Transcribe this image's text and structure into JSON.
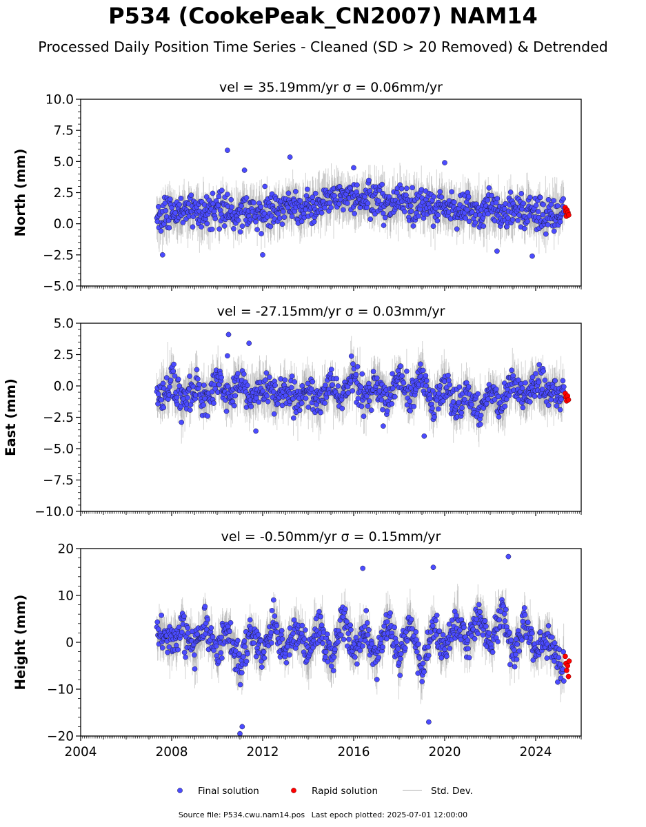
{
  "header": {
    "title": "P534 (CookePeak_CN2007) NAM14",
    "subtitle": "Processed Daily Position Time Series - Cleaned (SD > 20 Removed) & Detrended"
  },
  "footer": {
    "source": "Source file: P534.cwu.nam14.pos",
    "last_epoch": "Last epoch plotted: 2025-07-01 12:00:00"
  },
  "legend": {
    "placement": "bottom-center",
    "final_label": "Final solution",
    "rapid_label": "Rapid solution",
    "sd_label": "Std. Dev."
  },
  "colors": {
    "final": "#4b4bff",
    "rapid": "#ff0000",
    "stddev": "#808080",
    "axis": "#000000"
  },
  "chart_data": [
    {
      "type": "scatter",
      "title": "vel = 35.19mm/yr   σ = 0.06mm/yr",
      "vel": "35.19mm/yr",
      "sigma": "0.06mm/yr",
      "ylabel": "North (mm)",
      "xlim": [
        2004,
        2026
      ],
      "ylim": [
        -5,
        10
      ],
      "yticks": [
        "10.0",
        "7.5",
        "5.0",
        "2.5",
        "0.0",
        "−2.5",
        "−5.0"
      ],
      "ytick_values": [
        10,
        7.5,
        5,
        2.5,
        0,
        -2.5,
        -5
      ],
      "series": [
        {
          "name": "Final solution",
          "x": [
            2007.5,
            2008.0,
            2008.5,
            2009.0,
            2009.5,
            2010.0,
            2010.5,
            2011.0,
            2011.5,
            2012.0,
            2012.5,
            2013.0,
            2013.5,
            2014.0,
            2014.5,
            2015.0,
            2015.5,
            2016.0,
            2016.5,
            2017.0,
            2017.5,
            2018.0,
            2018.5,
            2019.0,
            2019.5,
            2020.0,
            2020.5,
            2021.0,
            2021.5,
            2022.0,
            2022.5,
            2023.0,
            2023.5,
            2024.0,
            2024.5,
            2025.0
          ],
          "y": [
            0.6,
            0.9,
            0.8,
            1.0,
            0.7,
            1.1,
            0.8,
            1.0,
            0.9,
            1.2,
            1.0,
            1.3,
            1.4,
            1.2,
            1.5,
            2.3,
            2.0,
            1.9,
            1.8,
            1.9,
            1.5,
            1.8,
            1.4,
            1.7,
            1.2,
            1.6,
            1.0,
            1.3,
            0.9,
            1.1,
            0.8,
            1.2,
            0.9,
            0.8,
            0.7,
            1.1
          ]
        },
        {
          "name": "Rapid solution",
          "x": [
            2025.3,
            2025.32,
            2025.35,
            2025.38,
            2025.42,
            2025.45
          ],
          "y": [
            1.3,
            1.0,
            0.6,
            1.1,
            0.9,
            0.7
          ]
        }
      ],
      "outliers": {
        "x": [
          2010.45,
          2013.2,
          2011.2,
          2016.0,
          2023.85,
          2007.6,
          2012.0,
          2020.0,
          2022.3
        ],
        "y": [
          5.9,
          5.35,
          4.3,
          4.5,
          -2.6,
          -2.5,
          -2.5,
          4.9,
          -2.2
        ]
      }
    },
    {
      "type": "scatter",
      "title": "vel = -27.15mm/yr   σ = 0.03mm/yr",
      "vel": "-27.15mm/yr",
      "sigma": "0.03mm/yr",
      "ylabel": "East (mm)",
      "xlim": [
        2004,
        2026
      ],
      "ylim": [
        -10,
        5
      ],
      "yticks": [
        "5.0",
        "2.5",
        "0.0",
        "−2.5",
        "−5.0",
        "−7.5",
        "−10.0"
      ],
      "ytick_values": [
        5,
        2.5,
        0,
        -2.5,
        -5,
        -7.5,
        -10
      ],
      "series": [
        {
          "name": "Final solution",
          "x": [
            2007.5,
            2008.0,
            2008.5,
            2009.0,
            2009.5,
            2010.0,
            2010.5,
            2011.0,
            2011.5,
            2012.0,
            2012.5,
            2013.0,
            2013.5,
            2014.0,
            2014.5,
            2015.0,
            2015.5,
            2016.0,
            2016.5,
            2017.0,
            2017.5,
            2018.0,
            2018.5,
            2019.0,
            2019.5,
            2020.0,
            2020.5,
            2021.0,
            2021.5,
            2022.0,
            2022.5,
            2023.0,
            2023.5,
            2024.0,
            2024.5,
            2025.0
          ],
          "y": [
            -0.8,
            0.5,
            -1.3,
            0.2,
            -1.2,
            0.3,
            -1.1,
            0.2,
            -1.0,
            -0.2,
            -1.0,
            -0.4,
            -1.2,
            -0.3,
            -1.3,
            0.2,
            -1.2,
            1.2,
            -1.4,
            0.6,
            -1.5,
            0.8,
            -1.0,
            1.0,
            -1.6,
            0.0,
            -1.8,
            -0.3,
            -2.2,
            -0.5,
            -1.5,
            0.3,
            -1.0,
            0.5,
            -0.9,
            -0.6
          ]
        },
        {
          "name": "Rapid solution",
          "x": [
            2025.3,
            2025.33,
            2025.36,
            2025.4,
            2025.44
          ],
          "y": [
            -0.6,
            -0.9,
            -1.2,
            -0.8,
            -1.1
          ]
        }
      ],
      "outliers": {
        "x": [
          2010.5,
          2011.4,
          2010.45,
          2011.7,
          2019.1,
          2017.3
        ],
        "y": [
          4.1,
          3.4,
          2.4,
          -3.6,
          -4.0,
          -3.2
        ]
      }
    },
    {
      "type": "scatter",
      "title": "vel = -0.50mm/yr   σ = 0.15mm/yr",
      "vel": "-0.50mm/yr",
      "sigma": "0.15mm/yr",
      "ylabel": "Height (mm)",
      "xlim": [
        2004,
        2026
      ],
      "ylim": [
        -20,
        20
      ],
      "yticks": [
        "20",
        "10",
        "0",
        "−10",
        "−20"
      ],
      "ytick_values": [
        20,
        10,
        0,
        -10,
        -20
      ],
      "xticks": [
        "2004",
        "2008",
        "2012",
        "2016",
        "2020",
        "2024"
      ],
      "xtick_values": [
        2004,
        2008,
        2012,
        2016,
        2020,
        2024
      ],
      "series": [
        {
          "name": "Final solution",
          "x": [
            2007.5,
            2008.0,
            2008.5,
            2009.0,
            2009.5,
            2010.0,
            2010.5,
            2011.0,
            2011.5,
            2012.0,
            2012.5,
            2013.0,
            2013.5,
            2014.0,
            2014.5,
            2015.0,
            2015.5,
            2016.0,
            2016.5,
            2017.0,
            2017.5,
            2018.0,
            2018.5,
            2019.0,
            2019.5,
            2020.0,
            2020.5,
            2021.0,
            2021.5,
            2022.0,
            2022.5,
            2023.0,
            2023.5,
            2024.0,
            2024.5,
            2025.0
          ],
          "y": [
            2,
            0,
            3,
            -2,
            4,
            -3,
            3,
            -6,
            2,
            -3,
            4,
            -2,
            3,
            -3,
            4,
            -4,
            5,
            -2,
            3,
            -4,
            4,
            -3,
            5,
            -6,
            4,
            -2,
            5,
            -1,
            6,
            0,
            7,
            -3,
            4,
            -2,
            2,
            -5
          ]
        },
        {
          "name": "Rapid solution",
          "x": [
            2025.3,
            2025.33,
            2025.36,
            2025.4,
            2025.44,
            2025.47
          ],
          "y": [
            -3,
            -4.5,
            -6,
            -5,
            -7.3,
            -4
          ]
        }
      ],
      "outliers": {
        "x": [
          2011.0,
          2011.1,
          2022.8,
          2016.4,
          2019.3,
          2019.5
        ],
        "y": [
          -19.5,
          -18,
          18.3,
          15.8,
          -17,
          16
        ]
      }
    }
  ]
}
